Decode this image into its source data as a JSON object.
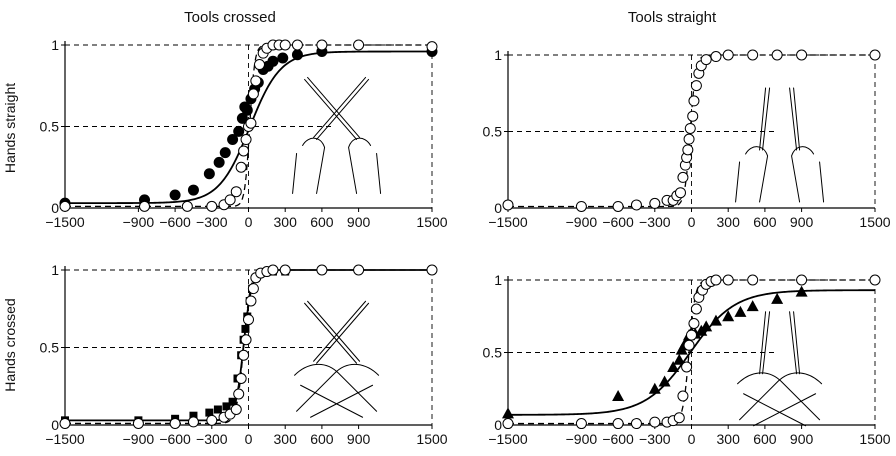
{
  "column_titles": [
    "Tools crossed",
    "Tools straight"
  ],
  "row_titles": [
    "Hands straight",
    "Hands crossed"
  ],
  "x_ticks": [
    -1500,
    -900,
    -600,
    -300,
    0,
    300,
    600,
    900,
    1500
  ],
  "y_ticks": [
    0,
    0.5,
    1
  ],
  "y_tick_labels": [
    "0",
    "0.5",
    "1"
  ],
  "chart_data": [
    {
      "type": "scatter",
      "column_title": "Tools crossed",
      "row_title": "Hands straight",
      "xlim": [
        -1500,
        1500
      ],
      "ylim": [
        0,
        1
      ],
      "series": [
        {
          "marker": "filled-circle",
          "x": [
            -1500,
            -850,
            -600,
            -450,
            -320,
            -240,
            -190,
            -130,
            -80,
            -50,
            -30,
            -10,
            20,
            50,
            80,
            120,
            160,
            200,
            280,
            400,
            600,
            1500
          ],
          "y": [
            0.03,
            0.05,
            0.08,
            0.11,
            0.21,
            0.28,
            0.34,
            0.42,
            0.47,
            0.55,
            0.62,
            0.6,
            0.67,
            0.73,
            0.77,
            0.85,
            0.87,
            0.9,
            0.92,
            0.94,
            0.96,
            0.96
          ],
          "fit_midpoint": 10,
          "fit_slope": 0.008,
          "fit_top": 0.96,
          "fit_bottom": 0.03
        },
        {
          "marker": "open-circle",
          "x": [
            -1500,
            -850,
            -500,
            -300,
            -200,
            -150,
            -100,
            -60,
            -40,
            -20,
            0,
            20,
            40,
            60,
            90,
            120,
            150,
            200,
            250,
            300,
            400,
            600,
            900,
            1500
          ],
          "y": [
            0.01,
            0.01,
            0.01,
            0.01,
            0.02,
            0.05,
            0.1,
            0.25,
            0.35,
            0.42,
            0.5,
            0.52,
            0.7,
            0.78,
            0.88,
            0.95,
            0.98,
            1.0,
            1.0,
            1.0,
            1.0,
            1.0,
            1.0,
            0.99
          ],
          "fit_midpoint": 10,
          "fit_slope": 0.05,
          "fit_top": 1.0,
          "fit_bottom": 0.01
        }
      ]
    },
    {
      "type": "scatter",
      "column_title": "Tools straight",
      "row_title": "Hands straight",
      "xlim": [
        -1500,
        1500
      ],
      "ylim": [
        0,
        1
      ],
      "series": [
        {
          "marker": "open-circle",
          "x": [
            -1500,
            -900,
            -600,
            -450,
            -300,
            -200,
            -150,
            -120,
            -90,
            -70,
            -50,
            -40,
            -30,
            -20,
            -10,
            10,
            20,
            40,
            60,
            80,
            120,
            200,
            300,
            500,
            700,
            900,
            1500
          ],
          "y": [
            0.02,
            0.01,
            0.01,
            0.02,
            0.03,
            0.05,
            0.05,
            0.08,
            0.1,
            0.2,
            0.28,
            0.33,
            0.38,
            0.45,
            0.52,
            0.6,
            0.7,
            0.8,
            0.88,
            0.93,
            0.97,
            0.99,
            1.0,
            1.0,
            1.0,
            1.0,
            1.0
          ],
          "fit_midpoint": -10,
          "fit_slope": 0.045,
          "fit_top": 1.0,
          "fit_bottom": 0.01
        }
      ]
    },
    {
      "type": "scatter",
      "column_title": "Tools crossed",
      "row_title": "Hands crossed",
      "xlim": [
        -1500,
        1500
      ],
      "ylim": [
        0,
        1
      ],
      "series": [
        {
          "marker": "filled-square",
          "x": [
            -1500,
            -900,
            -600,
            -450,
            -320,
            -250,
            -180,
            -130,
            -90,
            -60,
            -40,
            -25,
            -10,
            10,
            30,
            60,
            100,
            200,
            300,
            600,
            1500
          ],
          "y": [
            0.03,
            0.03,
            0.04,
            0.06,
            0.08,
            0.1,
            0.12,
            0.15,
            0.3,
            0.45,
            0.55,
            0.62,
            0.7,
            0.8,
            0.88,
            0.95,
            0.98,
            0.99,
            0.99,
            1.0,
            1.0
          ],
          "fit_midpoint": -40,
          "fit_slope": 0.03,
          "fit_top": 1.0,
          "fit_bottom": 0.03
        },
        {
          "marker": "open-circle",
          "x": [
            -1500,
            -900,
            -600,
            -450,
            -300,
            -200,
            -150,
            -100,
            -80,
            -60,
            -40,
            -20,
            0,
            20,
            40,
            60,
            100,
            150,
            200,
            300,
            600,
            900,
            1500
          ],
          "y": [
            0.01,
            0.01,
            0.01,
            0.02,
            0.03,
            0.05,
            0.07,
            0.1,
            0.2,
            0.3,
            0.45,
            0.55,
            0.68,
            0.8,
            0.88,
            0.95,
            0.98,
            0.99,
            1.0,
            1.0,
            1.0,
            1.0,
            1.0
          ],
          "fit_midpoint": -40,
          "fit_slope": 0.035,
          "fit_top": 1.0,
          "fit_bottom": 0.01
        }
      ]
    },
    {
      "type": "scatter",
      "column_title": "Tools straight",
      "row_title": "Hands crossed",
      "xlim": [
        -1500,
        1500
      ],
      "ylim": [
        0,
        1
      ],
      "series": [
        {
          "marker": "filled-triangle",
          "x": [
            -1500,
            -600,
            -300,
            -220,
            -150,
            -100,
            -80,
            -60,
            -40,
            -20,
            0,
            30,
            80,
            120,
            200,
            300,
            400,
            500,
            700,
            900
          ],
          "y": [
            0.08,
            0.2,
            0.25,
            0.3,
            0.4,
            0.45,
            0.52,
            0.55,
            0.58,
            0.62,
            0.64,
            0.63,
            0.65,
            0.68,
            0.72,
            0.75,
            0.78,
            0.82,
            0.87,
            0.92
          ],
          "fit_midpoint": -10,
          "fit_slope": 0.0055,
          "fit_top": 0.93,
          "fit_bottom": 0.07
        },
        {
          "marker": "open-circle",
          "x": [
            -1500,
            -900,
            -600,
            -450,
            -300,
            -200,
            -150,
            -100,
            -70,
            -40,
            -20,
            0,
            20,
            40,
            60,
            90,
            120,
            160,
            200,
            300,
            500,
            900,
            1500
          ],
          "y": [
            0.01,
            0.01,
            0.01,
            0.01,
            0.02,
            0.02,
            0.03,
            0.05,
            0.2,
            0.4,
            0.55,
            0.62,
            0.7,
            0.8,
            0.88,
            0.93,
            0.97,
            0.99,
            1.0,
            1.0,
            1.0,
            1.0,
            1.0
          ],
          "fit_midpoint": -20,
          "fit_slope": 0.04,
          "fit_top": 1.0,
          "fit_bottom": 0.01
        }
      ]
    }
  ]
}
